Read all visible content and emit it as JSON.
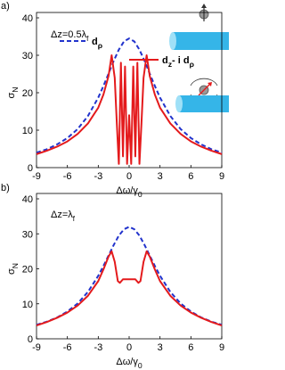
{
  "chart_data": [
    {
      "type": "line",
      "label": "a)",
      "annotation": [
        "Δz=0.5λ",
        "f"
      ],
      "xlabel": [
        "Δω/γ",
        "0"
      ],
      "ylabel": [
        "σ",
        "N"
      ],
      "xlim": [
        -9,
        9
      ],
      "xticks": [
        -9,
        -6,
        -3,
        0,
        3,
        6,
        9
      ],
      "ylim": [
        0,
        40
      ],
      "yticks": [
        0,
        10,
        20,
        30,
        40
      ],
      "legend": "upper center",
      "series": [
        {
          "name": [
            "d",
            "ρ"
          ],
          "color": "#2233cc",
          "dashed": true,
          "x": [
            -9,
            -8,
            -7,
            -6,
            -5,
            -4,
            -3,
            -2.5,
            -2,
            -1.5,
            -1,
            -0.5,
            0,
            0.5,
            1,
            1.5,
            2,
            2.5,
            3,
            4,
            5,
            6,
            7,
            8,
            9
          ],
          "values": [
            4.0,
            4.9,
            6.2,
            7.9,
            10.3,
            13.8,
            18.7,
            21.8,
            25.1,
            28.5,
            31.5,
            33.7,
            34.5,
            33.7,
            31.5,
            28.5,
            25.1,
            21.8,
            18.7,
            13.8,
            10.3,
            7.9,
            6.2,
            4.9,
            4.0
          ]
        },
        {
          "name": [
            "d",
            "z",
            "- i d",
            "ρ"
          ],
          "color": "#e41a1c",
          "dashed": false,
          "x": [
            -9,
            -8,
            -7,
            -6,
            -5,
            -4,
            -3,
            -2.5,
            -2,
            -1.7,
            -1.4,
            -1.2,
            -1.0,
            -0.8,
            -0.6,
            -0.4,
            -0.2,
            0,
            0.2,
            0.4,
            0.6,
            0.8,
            1.0,
            1.2,
            1.4,
            1.7,
            2,
            2.5,
            3,
            4,
            5,
            6,
            7,
            8,
            9
          ],
          "values": [
            3.6,
            4.5,
            5.6,
            7.0,
            9.0,
            11.8,
            16.0,
            19.5,
            24.5,
            30.0,
            24,
            12,
            1,
            28,
            3,
            27,
            1,
            14,
            1,
            27,
            3,
            28,
            1,
            12,
            24,
            30.0,
            24.5,
            19.5,
            16.0,
            11.8,
            9.0,
            7.0,
            5.6,
            4.5,
            3.6
          ]
        }
      ]
    },
    {
      "type": "line",
      "label": "b)",
      "annotation": [
        "Δz=λ",
        "f"
      ],
      "xlabel": [
        "Δω/γ",
        "0"
      ],
      "ylabel": [
        "σ",
        "N"
      ],
      "xlim": [
        -9,
        9
      ],
      "xticks": [
        -9,
        -6,
        -3,
        0,
        3,
        6,
        9
      ],
      "ylim": [
        0,
        40
      ],
      "yticks": [
        0,
        10,
        20,
        30,
        40
      ],
      "series": [
        {
          "color": "#2233cc",
          "dashed": true,
          "x": [
            -9,
            -8,
            -7,
            -6,
            -5,
            -4,
            -3,
            -2.5,
            -2,
            -1.5,
            -1,
            -0.5,
            0,
            0.5,
            1,
            1.5,
            2,
            2.5,
            3,
            4,
            5,
            6,
            7,
            8,
            9
          ],
          "values": [
            4.0,
            4.9,
            6.1,
            7.8,
            10.1,
            13.4,
            18.0,
            20.8,
            23.8,
            26.8,
            29.5,
            31.3,
            32,
            31.3,
            29.5,
            26.8,
            23.8,
            20.8,
            18.0,
            13.4,
            10.1,
            7.8,
            6.1,
            4.9,
            4.0
          ]
        },
        {
          "color": "#e41a1c",
          "dashed": false,
          "x": [
            -9,
            -8,
            -7,
            -6,
            -5,
            -4,
            -3,
            -2.5,
            -2,
            -1.7,
            -1.4,
            -1.1,
            -0.9,
            -0.6,
            0,
            0.6,
            0.9,
            1.1,
            1.4,
            1.7,
            2,
            2.5,
            3,
            4,
            5,
            6,
            7,
            8,
            9
          ],
          "values": [
            3.8,
            4.8,
            6.0,
            7.5,
            9.5,
            12.3,
            16.5,
            19.8,
            23.5,
            25,
            22,
            16.5,
            16,
            17,
            17,
            17,
            16,
            16.5,
            22,
            25,
            23.5,
            19.8,
            16.5,
            12.3,
            9.5,
            7.5,
            6.0,
            4.8,
            3.8
          ]
        }
      ]
    }
  ]
}
